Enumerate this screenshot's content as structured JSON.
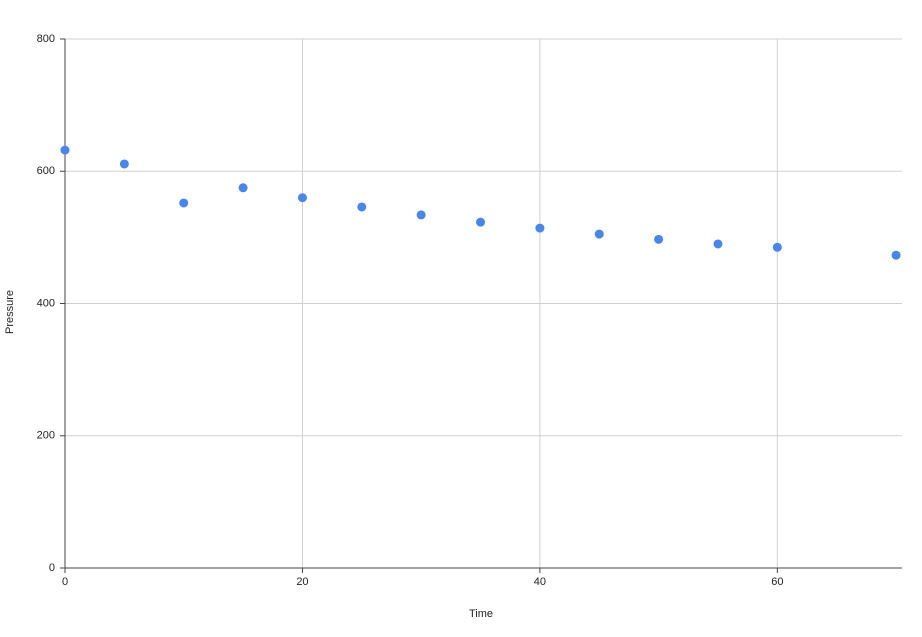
{
  "chart_data": {
    "type": "scatter",
    "x_label": "Time",
    "y_label": "Pressure",
    "x": [
      0,
      5,
      10,
      15,
      20,
      25,
      30,
      35,
      40,
      45,
      50,
      55,
      60,
      70
    ],
    "series": [
      {
        "name": "Pressure",
        "color": "#4a86e8",
        "values": [
          632,
          611,
          552,
          575,
          560,
          546,
          534,
          523,
          514,
          505,
          497,
          490,
          485,
          473
        ]
      }
    ],
    "xlim": [
      0,
      70.5
    ],
    "xticks": [
      0,
      20,
      40,
      60
    ],
    "ylim": [
      0,
      800
    ],
    "yticks": [
      0,
      200,
      400,
      600,
      800
    ],
    "grid": true
  }
}
